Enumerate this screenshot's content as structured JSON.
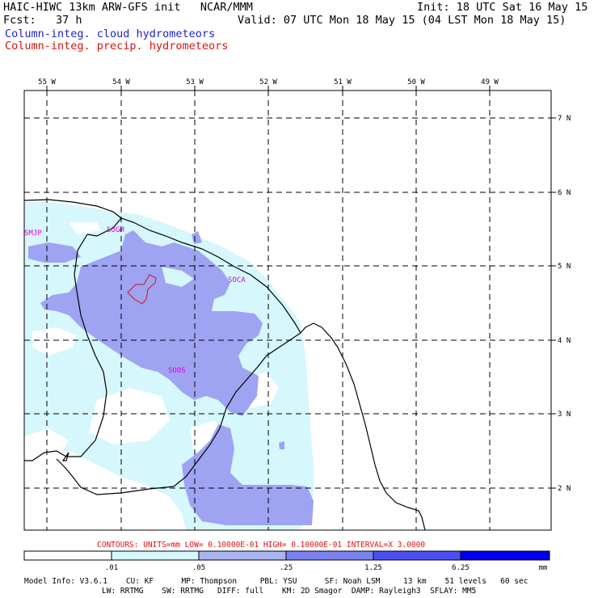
{
  "header": {
    "title": "HAIC-HIWC 13km ARW-GFS init   NCAR/MMM",
    "fcst": "Fcst:   37 h",
    "init": "Init: 18 UTC Sat 16 May 15",
    "valid": "Valid: 07 UTC Mon 18 May 15 (04 LST Mon 18 May 15)",
    "field1": "Column-integ. cloud hydrometeors",
    "field2": "Column-integ. precip. hydrometeors"
  },
  "axes": {
    "lon_labels": [
      "55 W",
      "54 W",
      "53 W",
      "52 W",
      "51 W",
      "50 W",
      "49 W"
    ],
    "lat_labels": [
      "7 N",
      "6 N",
      "5 N",
      "4 N",
      "3 N",
      "2 N"
    ]
  },
  "stations": [
    "SMJP",
    "SOGM",
    "SOCA",
    "SOOS"
  ],
  "contours_note": "CONTOURS:  UNITS=mm  LOW= 0.10000E-01  HIGH= 0.10000E-01  INTERVAL=X  3.0000",
  "colorbar": {
    "tick_labels": [
      ".01",
      ".05",
      ".25",
      "1.25",
      "6.25"
    ],
    "units": "mm",
    "colors": [
      "#ffffff",
      "#d6f7fc",
      "#aab4f0",
      "#7a83ee",
      "#4c4ef0",
      "#1e1ee2",
      "#0000ee"
    ]
  },
  "colors": {
    "cloud_light": "#d6f7fc",
    "cloud_mid": "#aab4f0",
    "cloud_heavy": "#9ea3f2",
    "precip_contour": "#e01010",
    "station_label": "#e000e0",
    "title_blue": "#1f1fd1"
  },
  "model_info": {
    "line1": "Model Info: V3.6.1    CU: KF      MP: Thompson     PBL: YSU      SF: Noah LSM     13 km    51 levels   60 sec",
    "line2": "LW: RRTMG    SW: RRTMG   DIFF: full    KM: 2D Smagor  DAMP: Rayleigh3  SFLAY: MM5"
  }
}
